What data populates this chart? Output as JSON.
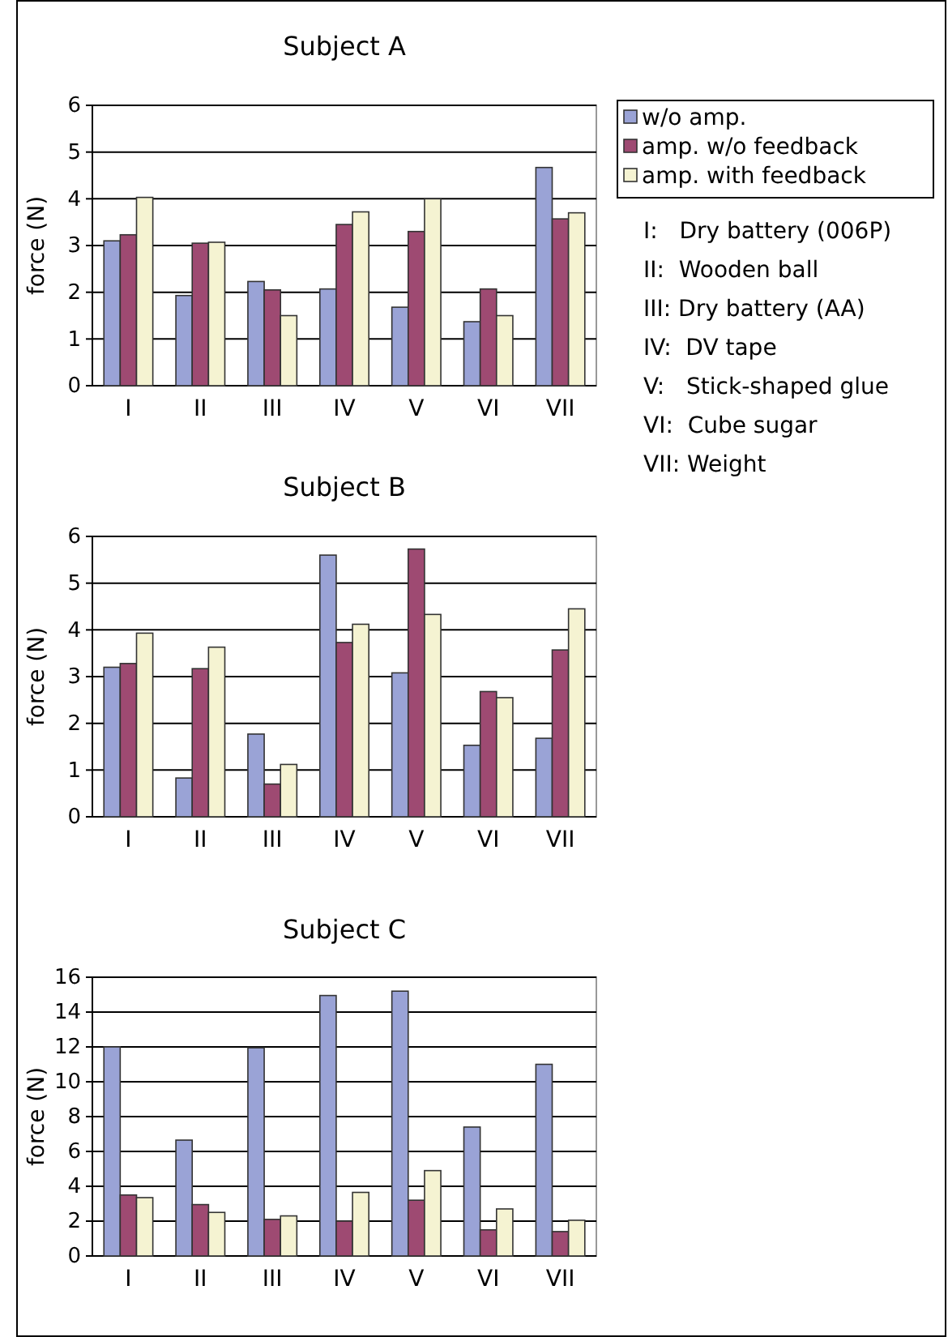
{
  "chart_data": [
    {
      "type": "bar",
      "title": "Subject  A",
      "ylabel": "force (N)",
      "categories": [
        "I",
        "II",
        "III",
        "IV",
        "V",
        "VI",
        "VII"
      ],
      "series": [
        {
          "name": "w/o amp.",
          "color": "#9aa3d6",
          "values": [
            3.1,
            1.93,
            2.23,
            2.07,
            1.68,
            1.37,
            4.67
          ]
        },
        {
          "name": "amp. w/o feedback",
          "color": "#9e4a72",
          "values": [
            3.23,
            3.05,
            2.05,
            3.45,
            3.3,
            2.07,
            3.57
          ]
        },
        {
          "name": "amp. with feedback",
          "color": "#f5f3d2",
          "values": [
            4.03,
            3.07,
            1.5,
            3.72,
            4.0,
            1.5,
            3.7
          ]
        }
      ],
      "ylim": [
        0,
        6
      ],
      "yticks": [
        0,
        1,
        2,
        3,
        4,
        5,
        6
      ],
      "grid": "y",
      "legend": "right",
      "annotations": [
        "I:   Dry battery (006P)",
        "II:  Wooden ball",
        "III: Dry battery (AA)",
        "IV:  DV tape",
        "V:   Stick-shaped glue",
        "VI:  Cube sugar",
        "VII: Weight"
      ]
    },
    {
      "type": "bar",
      "title": "Subject  B",
      "ylabel": "force (N)",
      "categories": [
        "I",
        "II",
        "III",
        "IV",
        "V",
        "VI",
        "VII"
      ],
      "series": [
        {
          "color": "#9aa3d6",
          "values": [
            3.2,
            0.83,
            1.77,
            5.6,
            3.08,
            1.53,
            1.68
          ]
        },
        {
          "color": "#9e4a72",
          "values": [
            3.28,
            3.17,
            0.7,
            3.73,
            5.73,
            2.68,
            3.57
          ]
        },
        {
          "color": "#f5f3d2",
          "values": [
            3.93,
            3.63,
            1.12,
            4.12,
            4.33,
            2.55,
            4.45
          ]
        }
      ],
      "ylim": [
        0,
        6
      ],
      "yticks": [
        0,
        1,
        2,
        3,
        4,
        5,
        6
      ],
      "grid": "y"
    },
    {
      "type": "bar",
      "title": "Subject  C",
      "ylabel": "force (N)",
      "categories": [
        "I",
        "II",
        "III",
        "IV",
        "V",
        "VI",
        "VII"
      ],
      "series": [
        {
          "color": "#9aa3d6",
          "values": [
            12,
            6.65,
            11.95,
            14.95,
            15.2,
            7.4,
            11.0
          ]
        },
        {
          "color": "#9e4a72",
          "values": [
            3.5,
            2.95,
            2.1,
            2.0,
            3.2,
            1.5,
            1.4
          ]
        },
        {
          "color": "#f5f3d2",
          "values": [
            3.35,
            2.5,
            2.3,
            3.65,
            4.9,
            2.7,
            2.05
          ]
        }
      ],
      "ylim": [
        0,
        16
      ],
      "yticks": [
        0,
        2,
        4,
        6,
        8,
        10,
        12,
        14,
        16
      ],
      "grid": "y"
    }
  ]
}
